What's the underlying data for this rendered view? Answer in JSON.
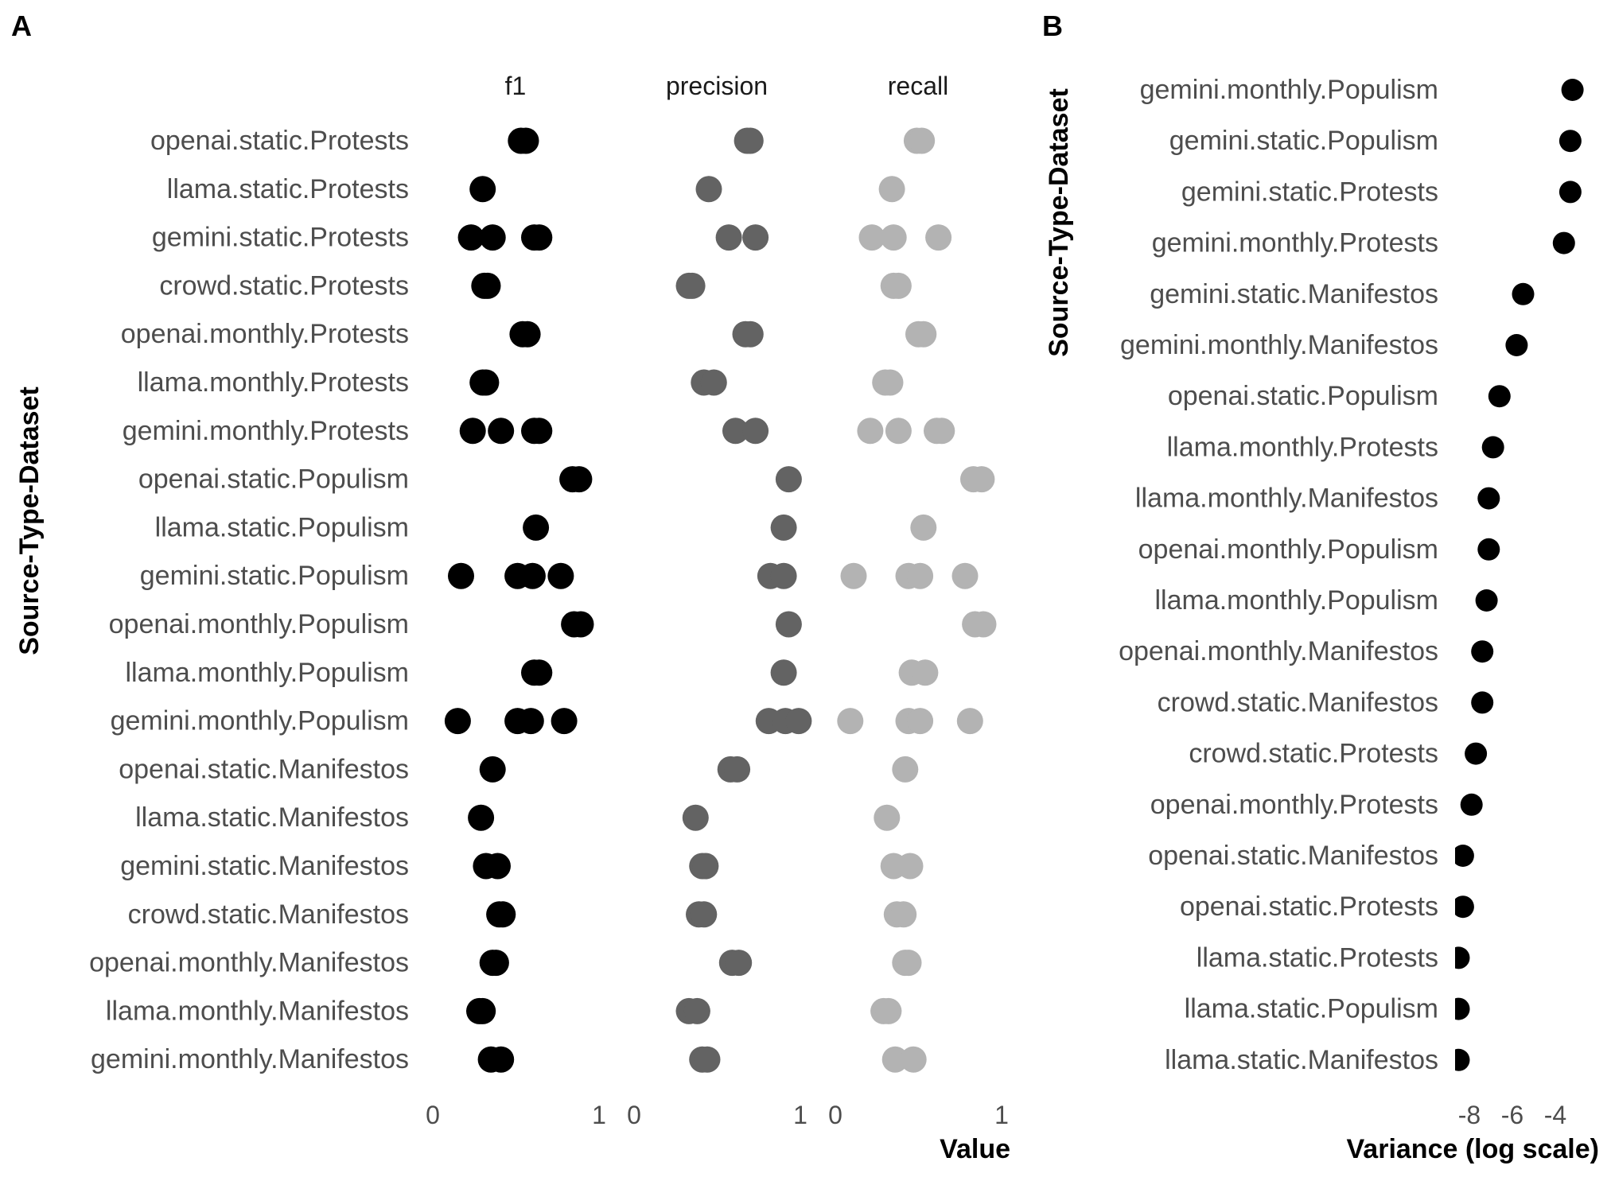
{
  "panel_a": {
    "tag": "A",
    "ylabel": "Source-Type-Dataset",
    "xlabel": "Value",
    "facets": [
      "f1",
      "precision",
      "recall"
    ],
    "xticks": [
      "0",
      "1"
    ]
  },
  "panel_b": {
    "tag": "B",
    "ylabel": "Source-Type-Dataset",
    "xlabel": "Variance (log scale)",
    "xticks": [
      "-8",
      "-6",
      "-4"
    ]
  },
  "chart_data": [
    {
      "type": "scatter",
      "title": "",
      "xlabel": "Value",
      "ylabel": "Source-Type-Dataset",
      "xlim": [
        0,
        1
      ],
      "facets": [
        "f1",
        "precision",
        "recall"
      ],
      "colors": {
        "f1": "#000000",
        "precision": "#636363",
        "recall": "#b3b3b3"
      },
      "categories": [
        "openai.static.Protests",
        "llama.static.Protests",
        "gemini.static.Protests",
        "crowd.static.Protests",
        "openai.monthly.Protests",
        "llama.monthly.Protests",
        "gemini.monthly.Protests",
        "openai.static.Populism",
        "llama.static.Populism",
        "gemini.static.Populism",
        "openai.monthly.Populism",
        "llama.monthly.Populism",
        "gemini.monthly.Populism",
        "openai.static.Manifestos",
        "llama.static.Manifestos",
        "gemini.static.Manifestos",
        "crowd.static.Manifestos",
        "openai.monthly.Manifestos",
        "llama.monthly.Manifestos",
        "gemini.monthly.Manifestos"
      ],
      "values": {
        "f1": [
          [
            0.53,
            0.56
          ],
          [
            0.3
          ],
          [
            0.23,
            0.36,
            0.61,
            0.64
          ],
          [
            0.31,
            0.33
          ],
          [
            0.54,
            0.57
          ],
          [
            0.3,
            0.32
          ],
          [
            0.24,
            0.41,
            0.61,
            0.64
          ],
          [
            0.84,
            0.88
          ],
          [
            0.62
          ],
          [
            0.17,
            0.51,
            0.6,
            0.77
          ],
          [
            0.85,
            0.89
          ],
          [
            0.61,
            0.64
          ],
          [
            0.15,
            0.51,
            0.59,
            0.79
          ],
          [
            0.36
          ],
          [
            0.29
          ],
          [
            0.32,
            0.39
          ],
          [
            0.4,
            0.42
          ],
          [
            0.36,
            0.38
          ],
          [
            0.28,
            0.3
          ],
          [
            0.35,
            0.41
          ]
        ],
        "precision": [
          [
            0.68,
            0.7
          ],
          [
            0.45
          ],
          [
            0.57,
            0.73
          ],
          [
            0.33,
            0.35
          ],
          [
            0.67,
            0.7
          ],
          [
            0.42,
            0.48
          ],
          [
            0.61,
            0.73
          ],
          [
            0.93
          ],
          [
            0.9
          ],
          [
            0.82,
            0.9
          ],
          [
            0.93
          ],
          [
            0.9
          ],
          [
            0.81,
            0.91,
            0.99
          ],
          [
            0.58,
            0.62
          ],
          [
            0.37
          ],
          [
            0.41,
            0.43
          ],
          [
            0.39,
            0.42
          ],
          [
            0.59,
            0.63
          ],
          [
            0.33,
            0.38
          ],
          [
            0.41,
            0.44
          ]
        ],
        "recall": [
          [
            0.49,
            0.52
          ],
          [
            0.34
          ],
          [
            0.22,
            0.35,
            0.62
          ],
          [
            0.35,
            0.38
          ],
          [
            0.5,
            0.53
          ],
          [
            0.3,
            0.33
          ],
          [
            0.21,
            0.38,
            0.61,
            0.64
          ],
          [
            0.83,
            0.88
          ],
          [
            0.53
          ],
          [
            0.11,
            0.44,
            0.51,
            0.78
          ],
          [
            0.84,
            0.89
          ],
          [
            0.46,
            0.54
          ],
          [
            0.09,
            0.44,
            0.51,
            0.81
          ],
          [
            0.42
          ],
          [
            0.31
          ],
          [
            0.35,
            0.45
          ],
          [
            0.37,
            0.41
          ],
          [
            0.42,
            0.44
          ],
          [
            0.29,
            0.32
          ],
          [
            0.36,
            0.47
          ]
        ]
      }
    },
    {
      "type": "scatter",
      "title": "",
      "xlabel": "Variance (log scale)",
      "ylabel": "Source-Type-Dataset",
      "xscale": "log",
      "xlim": [
        -8.5,
        -3.2
      ],
      "xticks": [
        -8,
        -6,
        -4
      ],
      "categories": [
        "gemini.monthly.Populism",
        "gemini.static.Populism",
        "gemini.static.Protests",
        "gemini.monthly.Protests",
        "gemini.static.Manifestos",
        "gemini.monthly.Manifestos",
        "openai.static.Populism",
        "llama.monthly.Protests",
        "llama.monthly.Manifestos",
        "openai.monthly.Populism",
        "llama.monthly.Populism",
        "openai.monthly.Manifestos",
        "crowd.static.Manifestos",
        "crowd.static.Protests",
        "openai.monthly.Protests",
        "openai.static.Manifestos",
        "openai.static.Protests",
        "llama.static.Protests",
        "llama.static.Populism",
        "llama.static.Manifestos"
      ],
      "values": [
        -3.2,
        -3.3,
        -3.3,
        -3.6,
        -5.5,
        -5.8,
        -6.6,
        -6.9,
        -7.1,
        -7.1,
        -7.2,
        -7.4,
        -7.4,
        -7.7,
        -7.9,
        -8.3,
        -8.3,
        -8.5,
        -8.5,
        -8.5
      ]
    }
  ]
}
